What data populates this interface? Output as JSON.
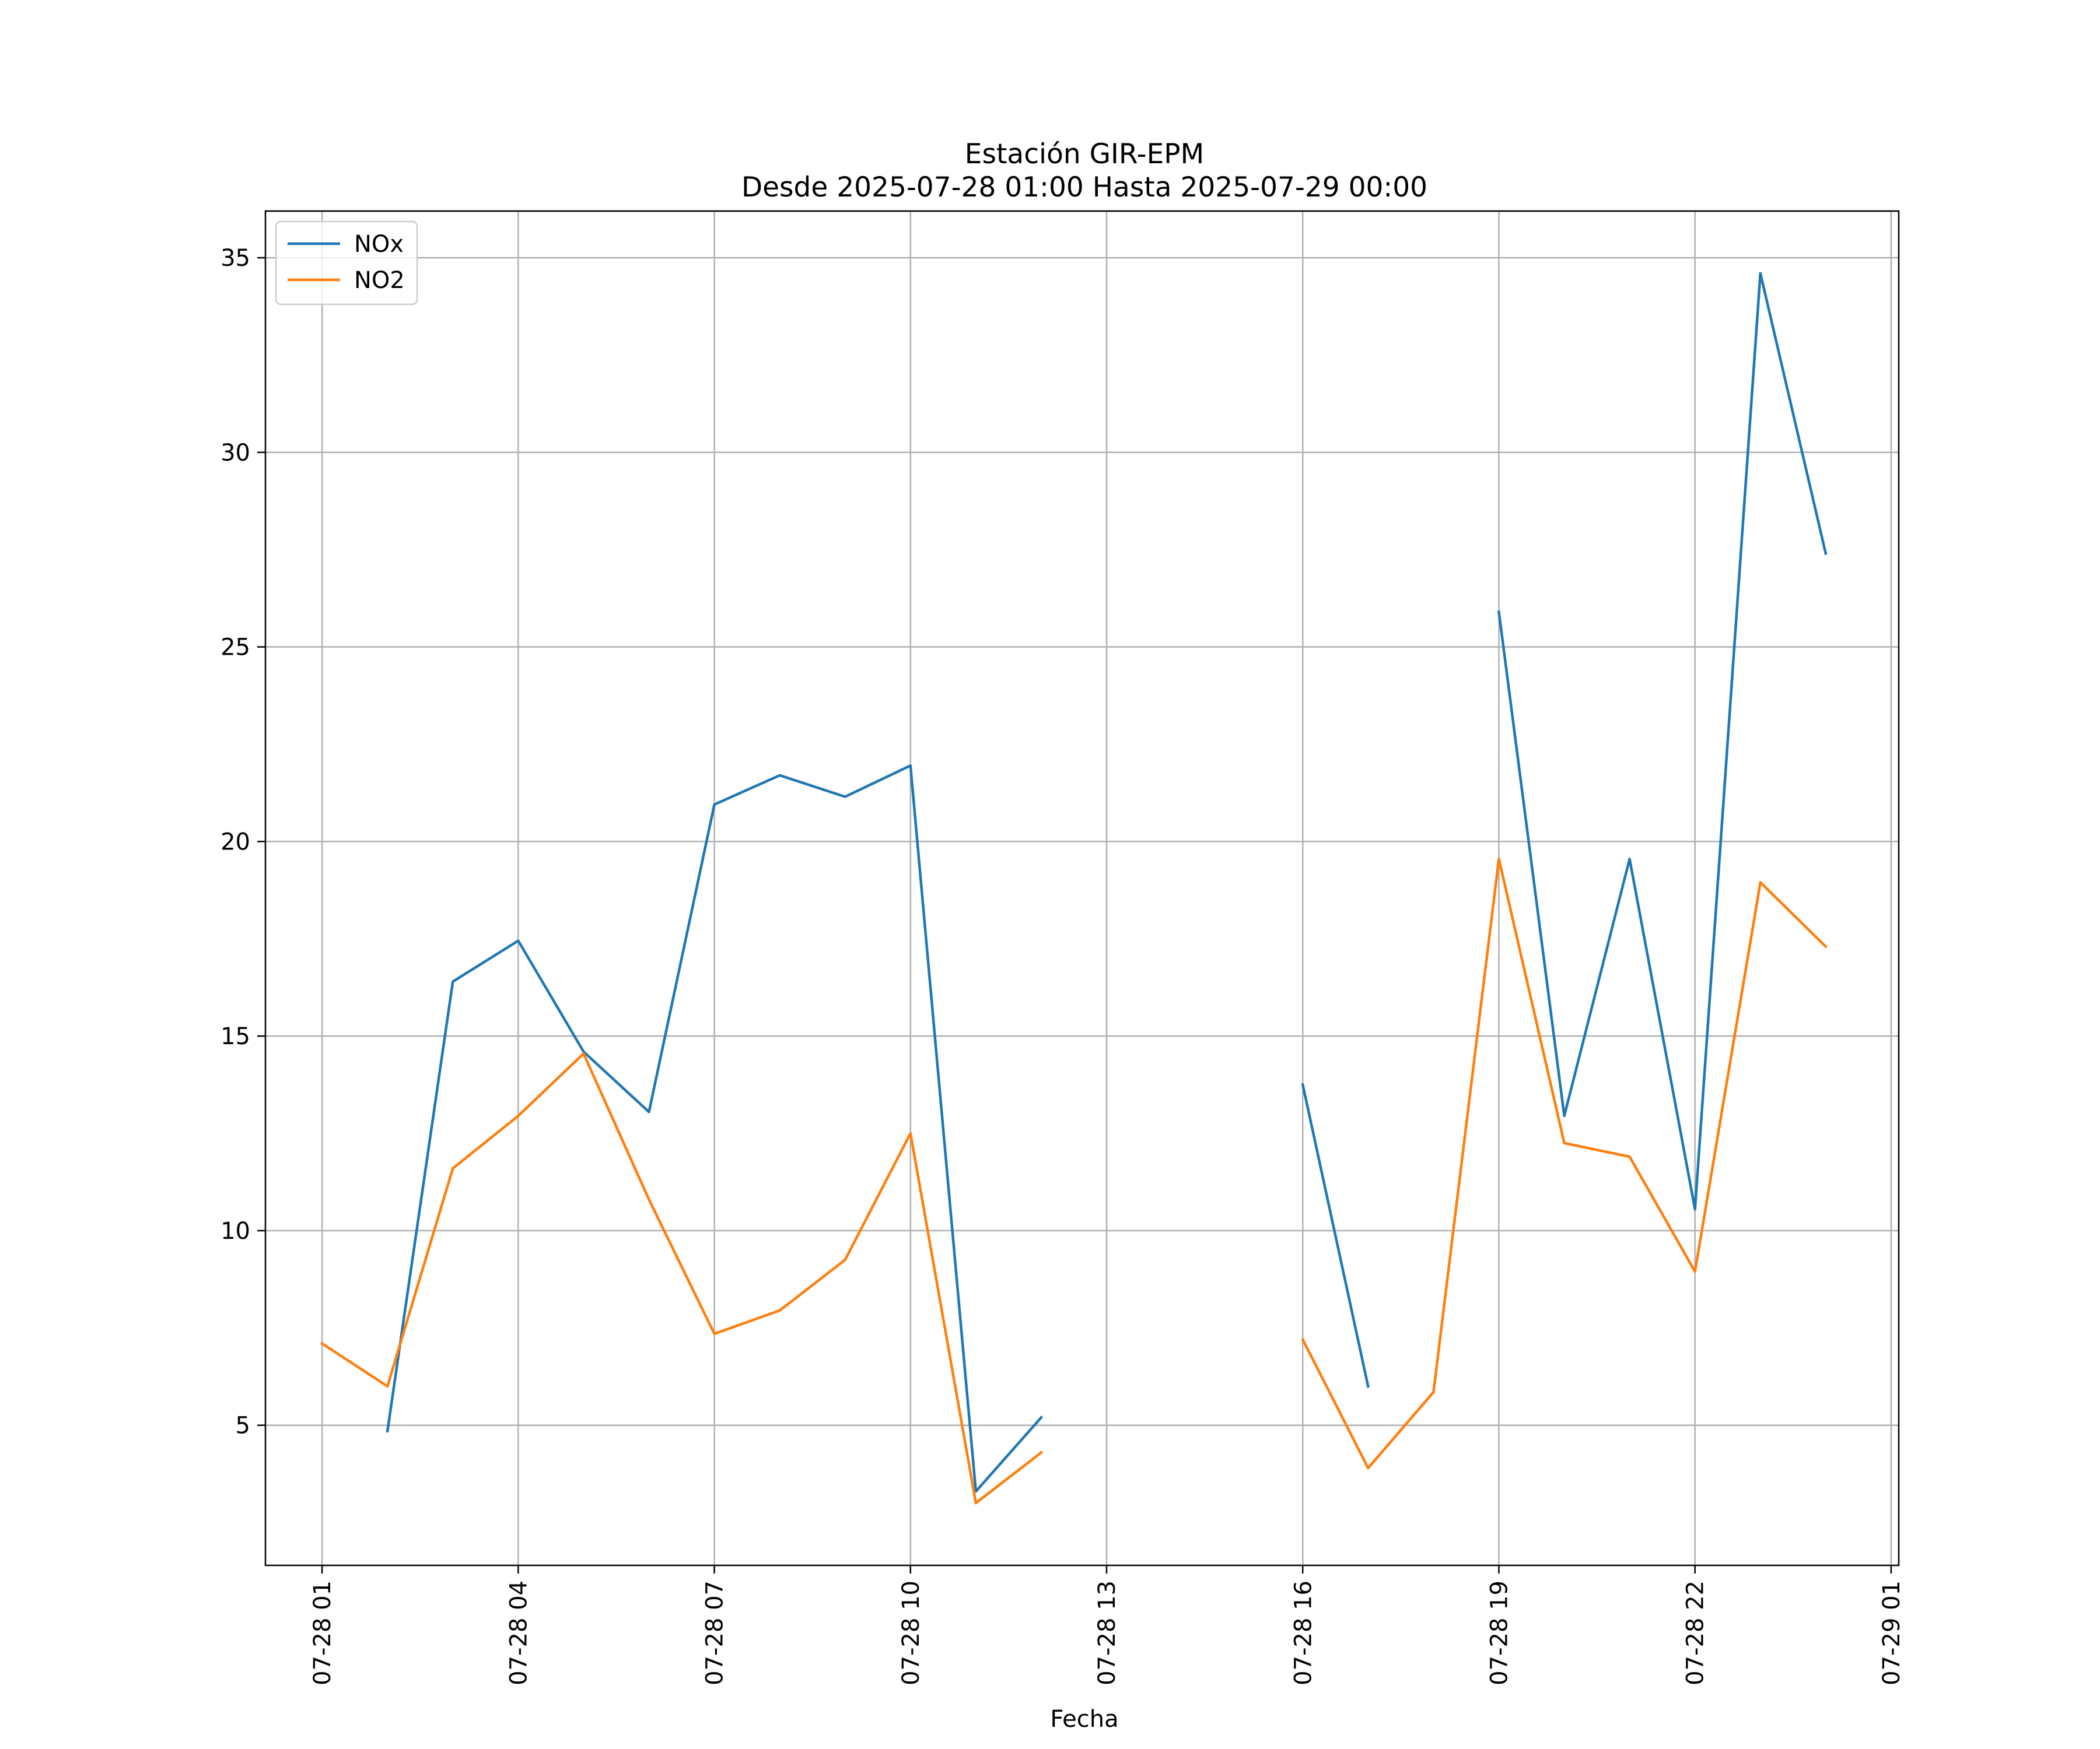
{
  "chart_data": {
    "type": "line",
    "title": "Estación GIR-EPM",
    "subtitle": "Desde 2025-07-28 01:00 Hasta 2025-07-29 00:00",
    "xlabel": "Fecha",
    "ylabel": "",
    "x": [
      "07-28 01",
      "07-28 02",
      "07-28 03",
      "07-28 04",
      "07-28 05",
      "07-28 06",
      "07-28 07",
      "07-28 08",
      "07-28 09",
      "07-28 10",
      "07-28 11",
      "07-28 12",
      "07-28 13",
      "07-28 14",
      "07-28 15",
      "07-28 16",
      "07-28 17",
      "07-28 18",
      "07-28 19",
      "07-28 20",
      "07-28 21",
      "07-28 22",
      "07-28 23",
      "07-29 00"
    ],
    "x_ticks": [
      "07-28 01",
      "07-28 04",
      "07-28 07",
      "07-28 10",
      "07-28 13",
      "07-28 16",
      "07-28 19",
      "07-28 22",
      "07-29 01"
    ],
    "y_ticks": [
      5,
      10,
      15,
      20,
      25,
      30,
      35
    ],
    "xlim": [
      "07-28 00:08",
      "07-29 01:07"
    ],
    "ylim": [
      1.4,
      36.2
    ],
    "grid": true,
    "legend_position": "top-left",
    "series": [
      {
        "name": "NOx",
        "color": "#1f77b4",
        "values": [
          null,
          4.85,
          16.4,
          17.45,
          14.6,
          13.05,
          20.95,
          21.7,
          21.15,
          21.95,
          3.3,
          5.2,
          null,
          null,
          null,
          13.75,
          6.0,
          null,
          25.9,
          12.95,
          19.55,
          10.55,
          34.6,
          27.4
        ]
      },
      {
        "name": "NO2",
        "color": "#ff7f0e",
        "values": [
          7.1,
          6.0,
          11.6,
          12.95,
          14.55,
          10.8,
          7.35,
          7.95,
          9.25,
          12.5,
          3.0,
          4.3,
          null,
          null,
          null,
          7.2,
          3.9,
          5.85,
          19.55,
          12.25,
          11.9,
          8.95,
          18.95,
          17.3
        ]
      }
    ]
  }
}
